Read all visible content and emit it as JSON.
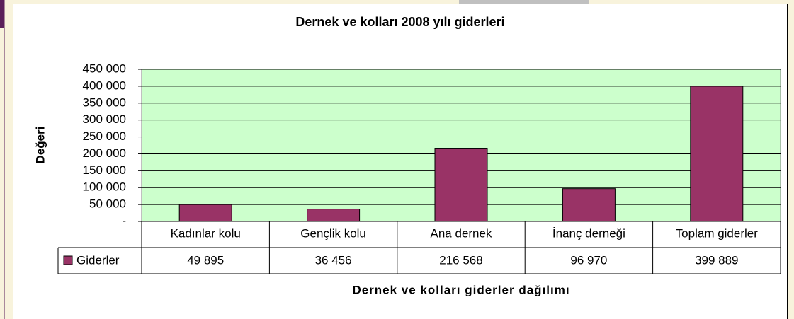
{
  "chart_data": {
    "type": "bar",
    "title": "Dernek ve kolları 2008 yılı giderleri",
    "y_label": "Değeri",
    "x_label": "Dernek ve kolları giderler dağılımı",
    "categories": [
      "Kadınlar kolu",
      "Gençlik kolu",
      "Ana dernek",
      "İnanç derneği",
      "Toplam giderler"
    ],
    "series": [
      {
        "name": "Giderler",
        "color": "#993366",
        "values": [
          49895,
          36456,
          216568,
          96970,
          399889
        ],
        "value_labels": [
          "49 895",
          "36 456",
          "216 568",
          "96 970",
          "399 889"
        ]
      }
    ],
    "ylim": [
      0,
      450000
    ],
    "yticks": [
      {
        "value": 0,
        "label": "-"
      },
      {
        "value": 50000,
        "label": "50 000"
      },
      {
        "value": 100000,
        "label": "100 000"
      },
      {
        "value": 150000,
        "label": "150 000"
      },
      {
        "value": 200000,
        "label": "200 000"
      },
      {
        "value": 250000,
        "label": "250 000"
      },
      {
        "value": 300000,
        "label": "300 000"
      },
      {
        "value": 350000,
        "label": "350 000"
      },
      {
        "value": 400000,
        "label": "400 000"
      },
      {
        "value": 450000,
        "label": "450 000"
      }
    ],
    "grid": true,
    "plot_background": "#ccffcc"
  }
}
